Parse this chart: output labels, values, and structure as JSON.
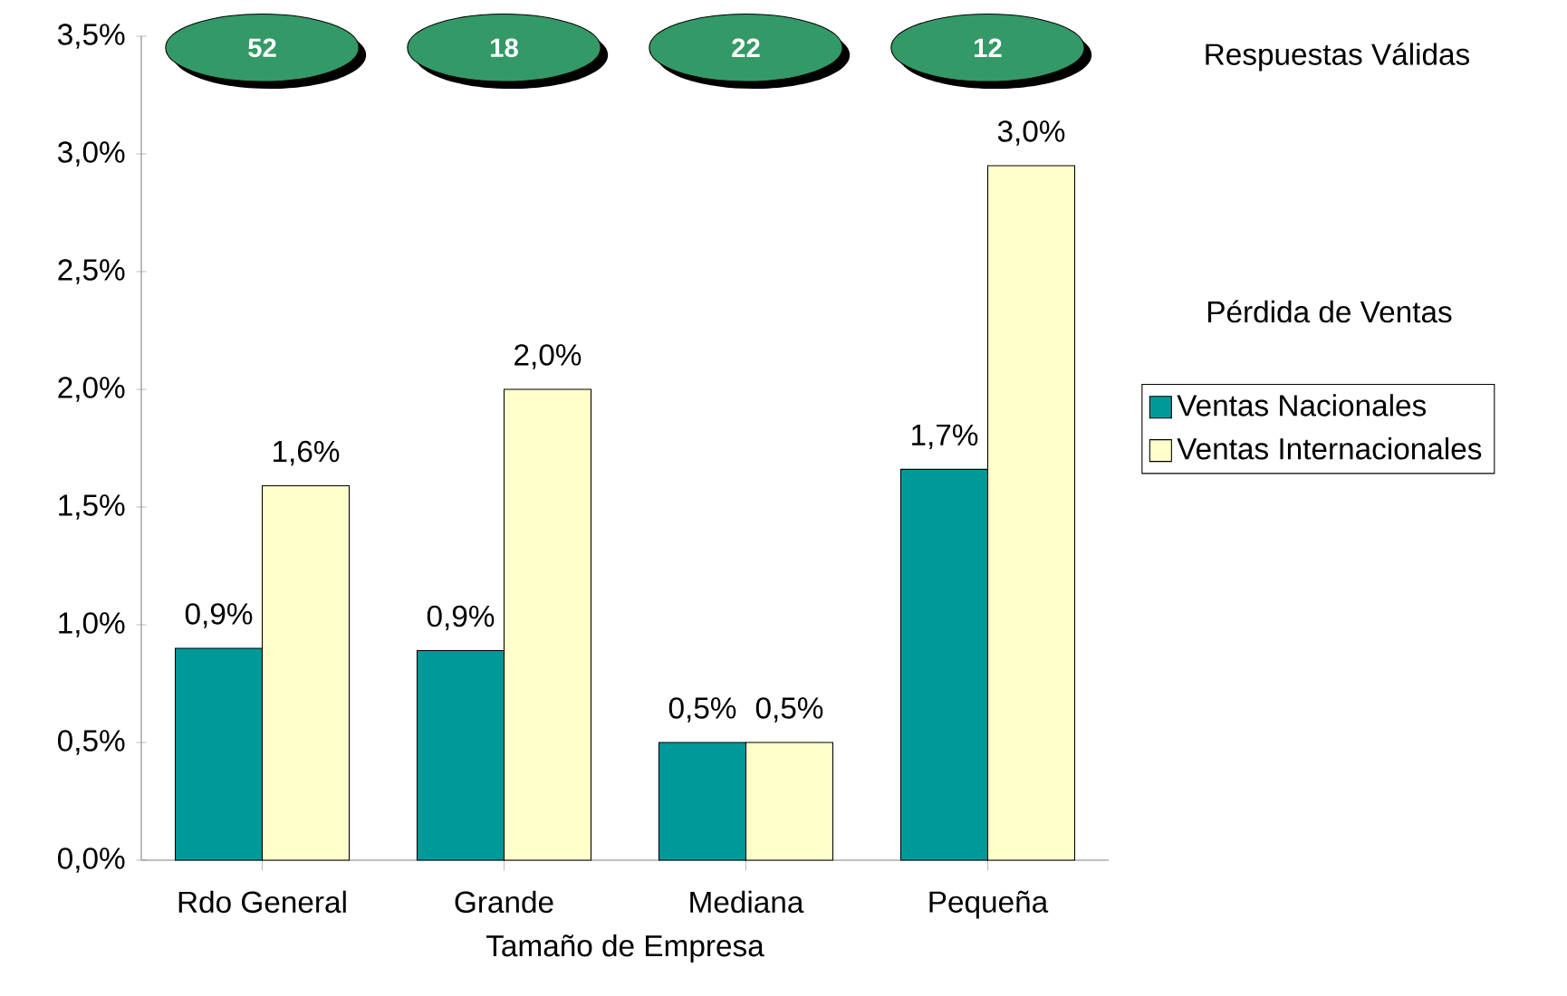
{
  "chart_data": {
    "type": "bar",
    "xlabel": "Tamaño de Empresa",
    "legend_title": "Pérdida de Ventas",
    "categories": [
      "Rdo General",
      "Grande",
      "Mediana",
      "Pequeña"
    ],
    "series": [
      {
        "name": "Ventas Nacionales",
        "color": "#009999",
        "values": [
          0.9,
          0.89,
          0.5,
          1.66
        ],
        "value_labels": [
          "0,9%",
          "0,9%",
          "0,5%",
          "1,7%"
        ]
      },
      {
        "name": "Ventas Internacionales",
        "color": "#ffffcc",
        "values": [
          1.59,
          2.0,
          0.5,
          2.95
        ],
        "value_labels": [
          "1,6%",
          "2,0%",
          "0,5%",
          "3,0%"
        ]
      }
    ],
    "ylim": [
      0,
      3.5
    ],
    "yticks": [
      {
        "value": 0,
        "label": "0,0%"
      },
      {
        "value": 0.5,
        "label": "0,5%"
      },
      {
        "value": 1,
        "label": "1,0%"
      },
      {
        "value": 1.5,
        "label": "1,5%"
      },
      {
        "value": 2,
        "label": "2,0%"
      },
      {
        "value": 2.5,
        "label": "2,5%"
      },
      {
        "value": 3,
        "label": "3,0%"
      },
      {
        "value": 3.5,
        "label": "3,5%"
      }
    ],
    "grid": false,
    "legend": "right",
    "annotations": [
      "52",
      "18",
      "22",
      "12",
      "Respuestas Válidas"
    ]
  }
}
